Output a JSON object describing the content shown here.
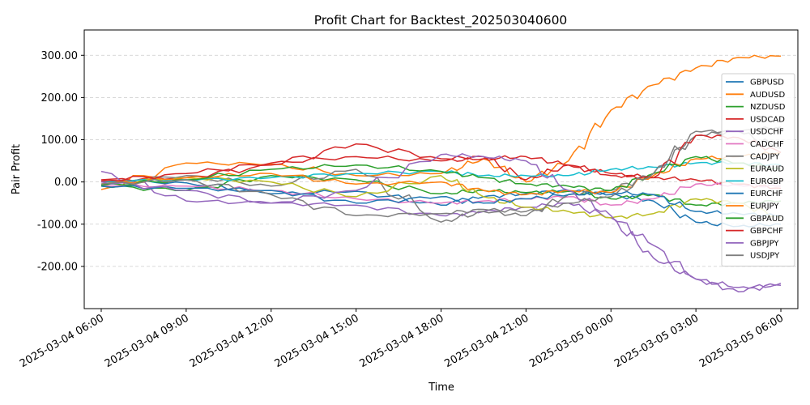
{
  "chart_data": {
    "type": "line",
    "title": "Profit Chart for Backtest_202503040600",
    "xlabel": "Time",
    "ylabel": "Pair Profit",
    "x_ticks": [
      "2025-03-04 06:00",
      "2025-03-04 09:00",
      "2025-03-04 12:00",
      "2025-03-04 15:00",
      "2025-03-04 18:00",
      "2025-03-04 21:00",
      "2025-03-05 00:00",
      "2025-03-05 03:00",
      "2025-03-05 06:00"
    ],
    "y_ticks": [
      "-200.00",
      "-100.00",
      "0.00",
      "100.00",
      "200.00",
      "300.00"
    ],
    "ylim": [
      -300,
      360
    ],
    "xlim_hours": [
      -0.6,
      24.6
    ],
    "grid": "horizontal dashed",
    "legend_position": "right",
    "time_points_hours_from_start": [
      0,
      3,
      6,
      9,
      12,
      13.5,
      15,
      16.5,
      18,
      19.5,
      21,
      22.5,
      24
    ],
    "series": [
      {
        "name": "GBPUSD",
        "color": "#1f77b4",
        "values": [
          2,
          -2,
          -28,
          -22,
          -55,
          -35,
          -28,
          -20,
          -30,
          -45,
          -95,
          -105,
          -100
        ]
      },
      {
        "name": "AUDUSD",
        "color": "#ff7f0e",
        "values": [
          -18,
          45,
          42,
          15,
          20,
          55,
          0,
          50,
          170,
          230,
          270,
          295,
          298
        ]
      },
      {
        "name": "NZDUSD",
        "color": "#2ca02c",
        "values": [
          -10,
          -20,
          15,
          5,
          -28,
          -20,
          -25,
          -22,
          -40,
          -30,
          -55,
          -50,
          -45
        ]
      },
      {
        "name": "USDCAD",
        "color": "#d62728",
        "values": [
          5,
          10,
          40,
          90,
          55,
          60,
          5,
          40,
          20,
          10,
          5,
          -5,
          -15
        ]
      },
      {
        "name": "USDCHF",
        "color": "#9467bd",
        "values": [
          25,
          -45,
          -50,
          -55,
          -80,
          -70,
          -60,
          -50,
          -85,
          -180,
          -230,
          -250,
          -245
        ]
      },
      {
        "name": "CADCHF",
        "color": "#e377c2",
        "values": [
          -8,
          -10,
          -20,
          -40,
          -50,
          -45,
          -40,
          -35,
          -55,
          -40,
          -5,
          -8,
          -10
        ]
      },
      {
        "name": "CADJPY",
        "color": "#7f7f7f",
        "values": [
          -5,
          15,
          -10,
          30,
          -95,
          -70,
          -80,
          -30,
          -20,
          20,
          110,
          120,
          80
        ]
      },
      {
        "name": "EURAUD",
        "color": "#bcbd22",
        "values": [
          -5,
          10,
          0,
          -35,
          15,
          -35,
          -60,
          -70,
          -85,
          -75,
          -40,
          -50,
          -85
        ]
      },
      {
        "name": "EURGBP",
        "color": "#17becf",
        "values": [
          0,
          5,
          10,
          20,
          25,
          15,
          15,
          15,
          30,
          35,
          45,
          45,
          40
        ]
      },
      {
        "name": "EURCHF",
        "color": "#1f77b4",
        "values": [
          -10,
          -15,
          -20,
          -50,
          -35,
          -50,
          -40,
          -30,
          -25,
          -30,
          -70,
          -75,
          -80
        ]
      },
      {
        "name": "EURJPY",
        "color": "#ff7f0e",
        "values": [
          -5,
          10,
          20,
          -5,
          0,
          -20,
          -30,
          -20,
          -25,
          15,
          55,
          60,
          70
        ]
      },
      {
        "name": "GBPAUD",
        "color": "#2ca02c",
        "values": [
          -8,
          5,
          30,
          40,
          25,
          10,
          -5,
          -10,
          -20,
          20,
          60,
          45,
          30
        ]
      },
      {
        "name": "GBPCHF",
        "color": "#d62728",
        "values": [
          2,
          20,
          45,
          60,
          50,
          55,
          60,
          40,
          15,
          10,
          110,
          105,
          70
        ]
      },
      {
        "name": "GBPJPY",
        "color": "#9467bd",
        "values": [
          0,
          -20,
          -50,
          -20,
          65,
          60,
          50,
          -20,
          -80,
          -150,
          -230,
          -260,
          -240
        ]
      },
      {
        "name": "USDJPY",
        "color": "#7f7f7f",
        "values": [
          -5,
          5,
          -30,
          -80,
          -75,
          -65,
          -70,
          -50,
          -35,
          20,
          120,
          120,
          130
        ]
      }
    ]
  }
}
